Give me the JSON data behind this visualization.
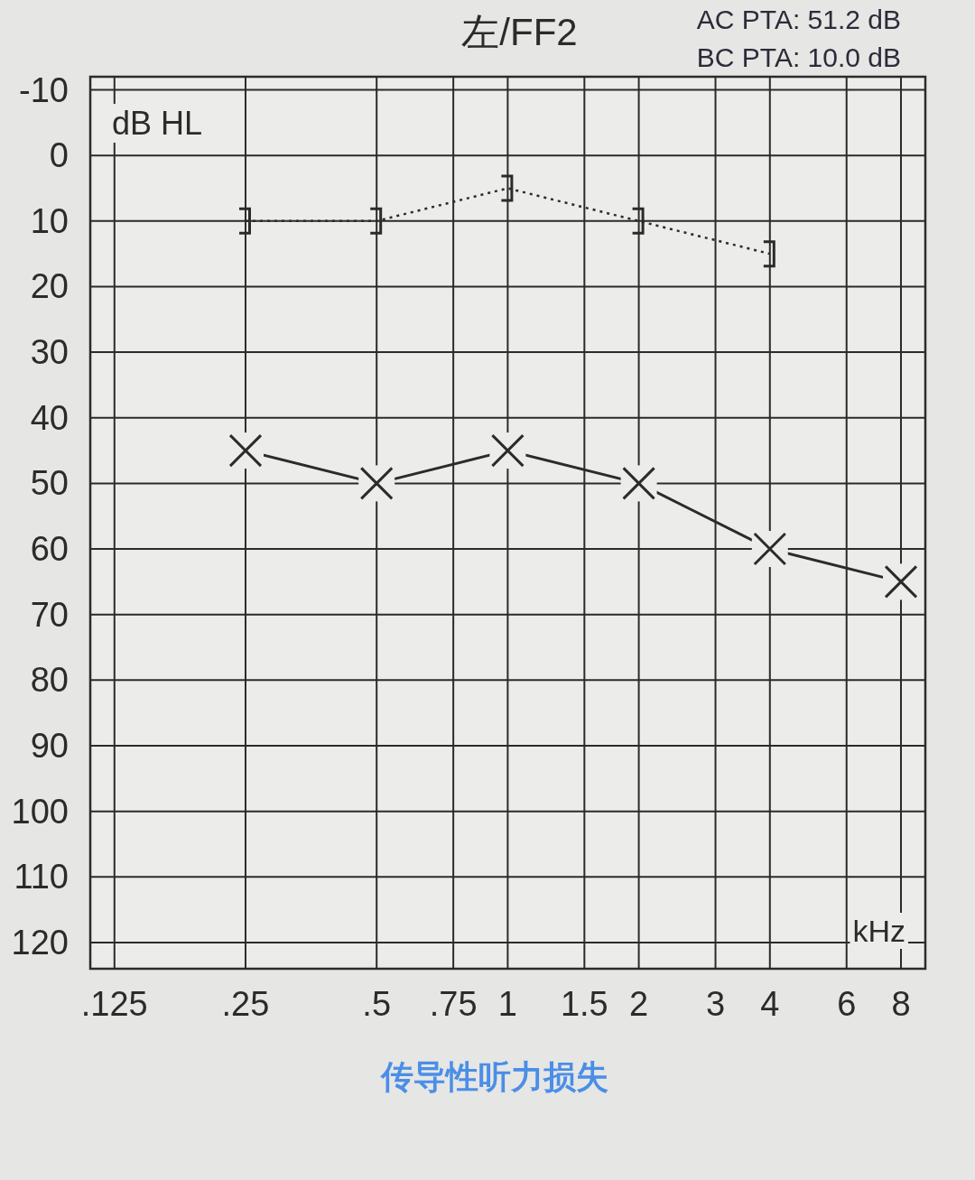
{
  "chart_data": {
    "type": "line",
    "title": "左/FF2",
    "xlabel": "kHz",
    "ylabel": "dB HL",
    "annotations": [
      "AC PTA: 51.2 dB",
      "BC PTA: 10.0 dB",
      "传导性听力损失"
    ],
    "log": "x",
    "grid": true,
    "xlim": [
      0.11,
      9.1
    ],
    "xticks": [
      {
        "value": 0.125,
        "label": ".125"
      },
      {
        "value": 0.25,
        "label": ".25"
      },
      {
        "value": 0.5,
        "label": ".5"
      },
      {
        "value": 0.75,
        "label": ".75"
      },
      1,
      1.5,
      2,
      3,
      4,
      6,
      8
    ],
    "ylim": [
      124,
      -12
    ],
    "yticks": [
      -10,
      0,
      10,
      20,
      30,
      40,
      50,
      60,
      70,
      80,
      90,
      100,
      110,
      120
    ],
    "series": [
      {
        "color": "#2b2b2b",
        "marker": "cross",
        "line_style": "solid",
        "x": [
          0.25,
          0.5,
          1,
          2,
          4,
          8
        ],
        "values": [
          45,
          50,
          45,
          50,
          60,
          65
        ]
      },
      {
        "color": "#2b2b2b",
        "marker": "square",
        "line_style": "dotted",
        "x": [
          0.25,
          0.5,
          1,
          2,
          4
        ],
        "values": [
          10,
          10,
          5,
          10,
          15
        ]
      }
    ]
  }
}
